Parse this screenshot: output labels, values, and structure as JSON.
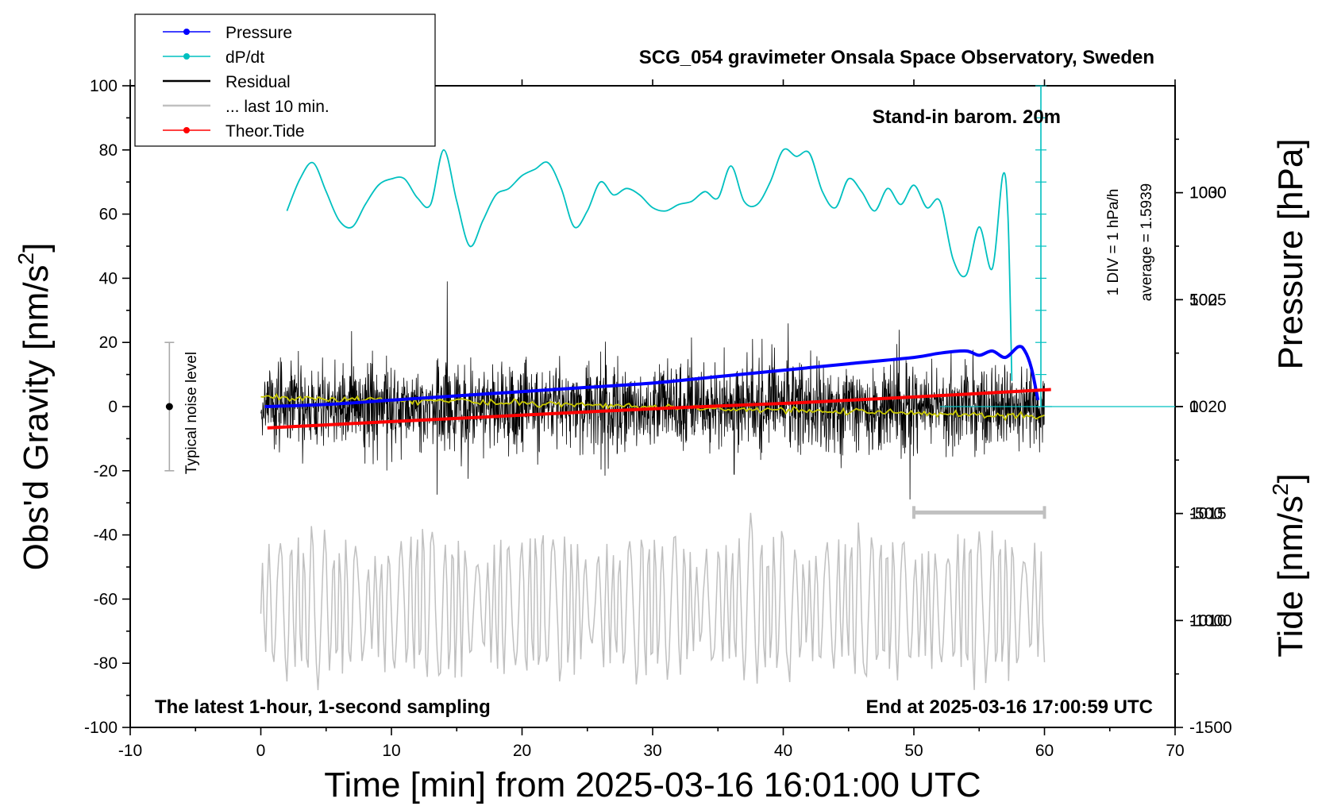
{
  "chart_data": {
    "type": "line",
    "title": "SCG_054 gravimeter Onsala Space Observatory, Sweden",
    "subtitle_right": "Stand-in barom. 20m",
    "bottom_left_note": "The latest 1-hour, 1-second sampling",
    "bottom_right_note": "End at 2025-03-16 17:00:59 UTC",
    "xlabel": "Time [min] from 2025-03-16 16:01:00 UTC",
    "ylabel_left_main": "Obs'd Gravity [nm/s",
    "ylabel_left_sup": "2",
    "ylabel_left_close": "]",
    "ylabel_right_pressure": "Pressure [hPa]",
    "ylabel_right_tide_main": "Tide [nm/s",
    "ylabel_right_tide_sup": "2",
    "ylabel_right_tide_close": "]",
    "xlim": [
      -10,
      70
    ],
    "ylim": [
      -100,
      100
    ],
    "pressure_lim": [
      1005,
      1035
    ],
    "tide_lim": [
      -1500,
      1500
    ],
    "x_ticks": [
      "-10",
      "0",
      "10",
      "20",
      "30",
      "40",
      "50",
      "60",
      "70"
    ],
    "y_ticks": [
      "100",
      "80",
      "60",
      "40",
      "20",
      "0",
      "-20",
      "-40",
      "-60",
      "-80",
      "-100"
    ],
    "pressure_ticks": [
      "1030",
      "1025",
      "1020",
      "1015",
      "1010"
    ],
    "tide_ticks": [
      "1000",
      "500",
      "0",
      "-500",
      "-1000",
      "-1500"
    ],
    "dpdt_scale_label": "1 DIV = 1 hPa/h",
    "dpdt_average_label": "average = 1.5939",
    "noise_label": "Typical noise level",
    "noise_level": {
      "center": 0,
      "low": -20,
      "high": 20,
      "x": -7
    },
    "last10_bar": {
      "x_start": 50,
      "x_end": 60,
      "gravity": -33
    },
    "legend": [
      {
        "label": "Pressure",
        "color": "#0000ff",
        "marker": true
      },
      {
        "label": "dP/dt",
        "color": "#00c0c0",
        "marker": true
      },
      {
        "label": "Residual",
        "color": "#000000",
        "marker": false
      },
      {
        "label": "... last 10 min.",
        "color": "#c0c0c0",
        "marker": false
      },
      {
        "label": "Theor.Tide",
        "color": "#ff0000",
        "marker": true
      }
    ],
    "colors": {
      "pressure": "#0000ff",
      "dpdt": "#00c0c0",
      "residual": "#000000",
      "residual_mean": "#c8c800",
      "last10": "#c0c0c0",
      "tide": "#ff0000"
    },
    "series": [
      {
        "name": "Pressure",
        "axis": "pressure",
        "x": [
          0.3,
          5,
          10,
          15,
          20,
          25,
          30,
          35,
          40,
          45,
          50,
          52,
          54,
          55,
          56,
          57,
          58,
          58.5,
          59,
          59.5
        ],
        "y": [
          1020.0,
          1020.1,
          1020.3,
          1020.5,
          1020.7,
          1020.9,
          1021.1,
          1021.4,
          1021.7,
          1022.0,
          1022.3,
          1022.5,
          1022.6,
          1022.4,
          1022.6,
          1022.3,
          1022.8,
          1022.6,
          1021.8,
          1020.3
        ]
      },
      {
        "name": "dP/dt",
        "axis": "gravity",
        "x": [
          2,
          3,
          4,
          5,
          6,
          7,
          8,
          9,
          10,
          11,
          12,
          13,
          14,
          15,
          16,
          17,
          18,
          19,
          20,
          21,
          22,
          23,
          24,
          25,
          26,
          27,
          28,
          29,
          30,
          31,
          32,
          33,
          34,
          35,
          36,
          37,
          38,
          39,
          40,
          41,
          42,
          43,
          44,
          45,
          46,
          47,
          48,
          49,
          50,
          51,
          52,
          53,
          54,
          55,
          56,
          56.8,
          57.2,
          57.5
        ],
        "y": [
          61,
          71,
          76,
          67,
          58,
          56,
          63,
          69,
          71,
          71,
          65,
          63,
          80,
          64,
          50,
          58,
          66,
          68,
          72,
          74,
          76,
          68,
          56,
          61,
          70,
          66,
          68,
          66,
          62,
          61,
          63,
          64,
          67,
          65,
          75,
          64,
          63,
          70,
          80,
          78,
          79,
          67,
          62,
          71,
          67,
          61,
          68,
          63,
          69,
          62,
          64,
          46,
          41,
          56,
          43,
          72,
          60,
          8
        ]
      },
      {
        "name": "Theor.Tide",
        "axis": "tide",
        "x": [
          0.5,
          10,
          20,
          30,
          40,
          50,
          60.5
        ],
        "y": [
          -100,
          -70,
          -40,
          -10,
          15,
          45,
          80
        ]
      }
    ],
    "residual_envelope": {
      "x_start": 0,
      "x_end": 60,
      "spike_min": -40,
      "spike_max": 39,
      "mean_start": 3,
      "mean_end": -3
    },
    "last10_trace": {
      "x_start": 0,
      "x_end": 60,
      "center": -62,
      "amplitude": 18
    }
  }
}
